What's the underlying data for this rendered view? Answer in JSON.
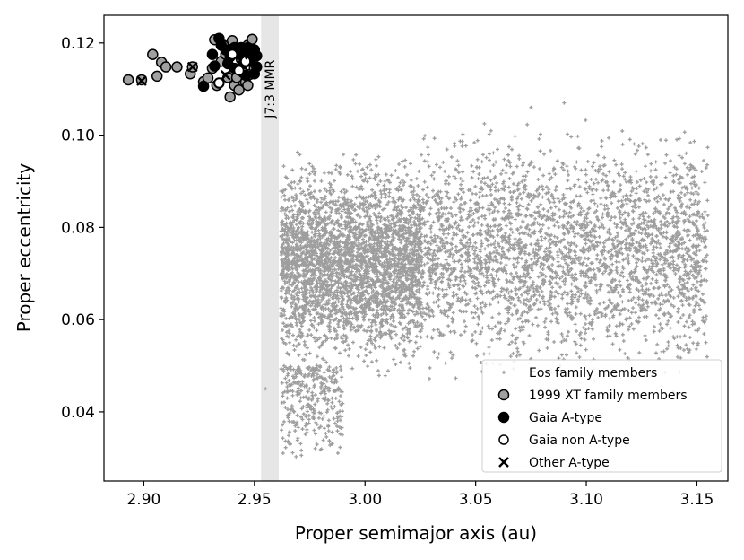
{
  "chart_data": {
    "type": "scatter",
    "title": "",
    "xlabel": "Proper semimajor axis (au)",
    "ylabel": "Proper eccentricity",
    "xlim": [
      2.882,
      3.164
    ],
    "ylim": [
      0.025,
      0.126
    ],
    "x_ticks": [
      "2.90",
      "2.95",
      "3.00",
      "3.05",
      "3.10",
      "3.15"
    ],
    "y_ticks": [
      "0.04",
      "0.06",
      "0.08",
      "0.10",
      "0.12"
    ],
    "grid": false,
    "legend_position": "lower-right",
    "annotation": {
      "label": "J7:3 MMR",
      "band_x": [
        2.953,
        2.961
      ],
      "band_color": "#e6e6e6"
    },
    "colors": {
      "eos": "#9e9e9e",
      "xt_fill": "#a0a0a0",
      "xt_edge": "#000000",
      "gaia_a": "#000000",
      "gaia_non_a_fill": "#ffffff",
      "other_a": "#000000"
    },
    "series": [
      {
        "name": "Eos family members",
        "marker": "plus",
        "description": "dense cloud of several thousand points; two main lobes",
        "density_regions": [
          {
            "x": [
              2.962,
              3.026
            ],
            "y": [
              0.045,
              0.099
            ],
            "weight": 0.5
          },
          {
            "x": [
              3.026,
              3.155
            ],
            "y": [
              0.043,
              0.106
            ],
            "weight": 0.45
          },
          {
            "x": [
              2.962,
              2.99
            ],
            "y": [
              0.03,
              0.05
            ],
            "weight": 0.05
          }
        ],
        "outliers": [
          [
            2.955,
            0.045
          ],
          [
            2.985,
            0.033
          ],
          [
            3.09,
            0.107
          ],
          [
            3.075,
            0.106
          ]
        ]
      },
      {
        "name": "1999 XT family members",
        "marker": "circle-gray",
        "points": [
          [
            2.893,
            0.112
          ],
          [
            2.899,
            0.112
          ],
          [
            2.904,
            0.1175
          ],
          [
            2.906,
            0.1128
          ],
          [
            2.908,
            0.1158
          ],
          [
            2.91,
            0.1148
          ],
          [
            2.915,
            0.1148
          ],
          [
            2.921,
            0.1133
          ],
          [
            2.922,
            0.1148
          ],
          [
            2.927,
            0.1116
          ],
          [
            2.929,
            0.1124
          ],
          [
            2.931,
            0.1145
          ],
          [
            2.932,
            0.1207
          ],
          [
            2.933,
            0.1108
          ],
          [
            2.934,
            0.1113
          ],
          [
            2.935,
            0.116
          ],
          [
            2.936,
            0.1195
          ],
          [
            2.937,
            0.1175
          ],
          [
            2.938,
            0.1125
          ],
          [
            2.939,
            0.1083
          ],
          [
            2.94,
            0.1205
          ],
          [
            2.941,
            0.1108
          ],
          [
            2.942,
            0.1185
          ],
          [
            2.942,
            0.1125
          ],
          [
            2.943,
            0.1098
          ],
          [
            2.944,
            0.1165
          ],
          [
            2.945,
            0.1135
          ],
          [
            2.946,
            0.1115
          ],
          [
            2.947,
            0.1195
          ],
          [
            2.947,
            0.1108
          ],
          [
            2.948,
            0.117
          ],
          [
            2.948,
            0.1132
          ],
          [
            2.949,
            0.1208
          ],
          [
            2.95,
            0.1145
          ]
        ]
      },
      {
        "name": "Gaia A-type",
        "marker": "circle-black",
        "points": [
          [
            2.927,
            0.1106
          ],
          [
            2.931,
            0.1175
          ],
          [
            2.932,
            0.115
          ],
          [
            2.934,
            0.121
          ],
          [
            2.935,
            0.1195
          ],
          [
            2.937,
            0.1185
          ],
          [
            2.938,
            0.1155
          ],
          [
            2.939,
            0.117
          ],
          [
            2.941,
            0.119
          ],
          [
            2.941,
            0.1145
          ],
          [
            2.943,
            0.1175
          ],
          [
            2.944,
            0.119
          ],
          [
            2.945,
            0.1155
          ],
          [
            2.946,
            0.118
          ],
          [
            2.946,
            0.113
          ],
          [
            2.947,
            0.119
          ],
          [
            2.948,
            0.116
          ],
          [
            2.949,
            0.1175
          ],
          [
            2.95,
            0.1185
          ],
          [
            2.951,
            0.1172
          ],
          [
            2.951,
            0.1148
          ],
          [
            2.95,
            0.1133
          ]
        ]
      },
      {
        "name": "Gaia non A-type",
        "marker": "circle-white",
        "points": [
          [
            2.934,
            0.1113
          ],
          [
            2.94,
            0.1175
          ],
          [
            2.943,
            0.114
          ],
          [
            2.946,
            0.116
          ]
        ]
      },
      {
        "name": "Other A-type",
        "marker": "x",
        "points": [
          [
            2.899,
            0.1118
          ],
          [
            2.922,
            0.1148
          ],
          [
            2.937,
            0.113
          ],
          [
            2.945,
            0.1185
          ],
          [
            2.948,
            0.1175
          ]
        ]
      }
    ]
  }
}
